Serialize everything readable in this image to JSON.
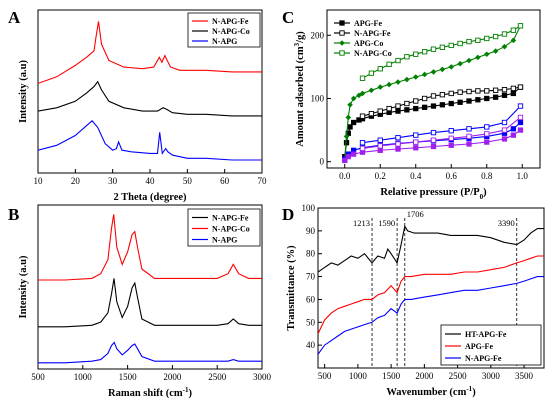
{
  "chart_data": [
    {
      "panel": "A",
      "type": "line",
      "xlabel": "2 Theta (degree)",
      "ylabel": "Intensity (a.u)",
      "xlim": [
        10,
        70
      ],
      "xticks": [
        "10",
        "20",
        "30",
        "40",
        "50",
        "60",
        "70"
      ],
      "yticks_shown": false,
      "legend": "top-right",
      "series": [
        {
          "name": "N-APG-Fe",
          "color": "#ff0000",
          "x": [
            10,
            15,
            20,
            23,
            25,
            25.5,
            26.2,
            27,
            29,
            33,
            38,
            41,
            42.5,
            43.2,
            44,
            44.6,
            45.5,
            48,
            55,
            62,
            70
          ],
          "y": [
            0.6,
            0.64,
            0.71,
            0.76,
            0.8,
            0.88,
            0.98,
            0.84,
            0.74,
            0.7,
            0.69,
            0.7,
            0.76,
            0.73,
            0.77,
            0.74,
            0.7,
            0.68,
            0.68,
            0.67,
            0.67
          ]
        },
        {
          "name": "N-APG-Co",
          "color": "#000000",
          "x": [
            10,
            15,
            20,
            23,
            25,
            26,
            27,
            29,
            33,
            38,
            42,
            43.5,
            44.5,
            46,
            50,
            55,
            62,
            70
          ],
          "y": [
            0.43,
            0.45,
            0.49,
            0.54,
            0.58,
            0.61,
            0.56,
            0.49,
            0.45,
            0.43,
            0.43,
            0.45,
            0.44,
            0.42,
            0.41,
            0.41,
            0.4,
            0.4
          ]
        },
        {
          "name": "N-APG",
          "color": "#0000ff",
          "x": [
            10,
            15,
            20,
            23,
            24.5,
            26,
            28,
            30,
            31,
            31.6,
            32.5,
            35,
            40,
            42,
            42.6,
            43.3,
            44.2,
            44.8,
            46,
            50,
            55,
            62,
            70
          ],
          "y": [
            0.19,
            0.22,
            0.28,
            0.34,
            0.37,
            0.33,
            0.23,
            0.19,
            0.2,
            0.24,
            0.19,
            0.18,
            0.17,
            0.17,
            0.3,
            0.17,
            0.2,
            0.18,
            0.16,
            0.14,
            0.14,
            0.13,
            0.13
          ]
        }
      ]
    },
    {
      "panel": "B",
      "type": "line",
      "xlabel": "Raman shift (cm-1)",
      "ylabel": "Intensity (a.u)",
      "xlim": [
        500,
        3000
      ],
      "xticks": [
        "500",
        "1000",
        "1500",
        "2000",
        "2500",
        "3000"
      ],
      "yticks_shown": false,
      "legend": "top-right",
      "series": [
        {
          "name": "N-APG-Fe",
          "color": "#000000",
          "x": [
            500,
            800,
            1100,
            1200,
            1280,
            1320,
            1348,
            1380,
            1440,
            1500,
            1550,
            1580,
            1610,
            1660,
            1800,
            2200,
            2500,
            2620,
            2680,
            2740,
            2850,
            3000
          ],
          "y": [
            0.27,
            0.27,
            0.28,
            0.3,
            0.36,
            0.48,
            0.58,
            0.43,
            0.33,
            0.4,
            0.52,
            0.55,
            0.46,
            0.32,
            0.28,
            0.28,
            0.28,
            0.29,
            0.32,
            0.29,
            0.28,
            0.28
          ]
        },
        {
          "name": "N-APG-Co",
          "color": "#ff0000",
          "x": [
            500,
            800,
            1100,
            1200,
            1280,
            1320,
            1345,
            1380,
            1440,
            1500,
            1550,
            1580,
            1610,
            1660,
            1800,
            2200,
            2500,
            2620,
            2680,
            2740,
            2850,
            3000
          ],
          "y": [
            0.57,
            0.57,
            0.58,
            0.61,
            0.7,
            0.9,
            0.99,
            0.78,
            0.67,
            0.75,
            0.86,
            0.88,
            0.78,
            0.64,
            0.58,
            0.58,
            0.58,
            0.61,
            0.67,
            0.61,
            0.58,
            0.58
          ]
        },
        {
          "name": "N-APG",
          "color": "#0000ff",
          "x": [
            500,
            800,
            1100,
            1200,
            1280,
            1320,
            1350,
            1380,
            1440,
            1500,
            1550,
            1580,
            1610,
            1660,
            1800,
            2200,
            2500,
            2620,
            2680,
            2740,
            2850,
            3000
          ],
          "y": [
            0.04,
            0.04,
            0.05,
            0.06,
            0.1,
            0.15,
            0.17,
            0.13,
            0.09,
            0.12,
            0.15,
            0.16,
            0.13,
            0.08,
            0.05,
            0.05,
            0.05,
            0.05,
            0.06,
            0.05,
            0.05,
            0.05
          ]
        }
      ]
    },
    {
      "panel": "C",
      "type": "line",
      "xlabel": "Relative pressure (P/P0)",
      "ylabel": "Amount adsorbed (cm3/g)",
      "xlim": [
        -0.1,
        1.1
      ],
      "ylim": [
        -10,
        240
      ],
      "xticks": [
        "0.0",
        "0.2",
        "0.4",
        "0.6",
        "0.8",
        "1.0"
      ],
      "yticks": [
        "0",
        "100",
        "200"
      ],
      "legend": "top-left",
      "series": [
        {
          "name": "APG-Fe",
          "color": "#000000",
          "marker": "filled-square",
          "x": [
            0.0,
            0.01,
            0.02,
            0.03,
            0.05,
            0.08,
            0.1,
            0.15,
            0.2,
            0.25,
            0.3,
            0.35,
            0.4,
            0.45,
            0.5,
            0.55,
            0.6,
            0.65,
            0.7,
            0.75,
            0.8,
            0.85,
            0.9,
            0.95,
            0.99
          ],
          "y": [
            8,
            30,
            45,
            55,
            62,
            66,
            68,
            72,
            75,
            78,
            80,
            82,
            84,
            86,
            88,
            90,
            92,
            94,
            96,
            98,
            100,
            102,
            105,
            108,
            118
          ]
        },
        {
          "name": "N-APG-Fe",
          "color": "#000000",
          "marker": "open-square",
          "x": [
            0.99,
            0.95,
            0.9,
            0.85,
            0.8,
            0.75,
            0.7,
            0.65,
            0.6,
            0.55,
            0.5,
            0.45,
            0.4,
            0.35,
            0.3,
            0.25,
            0.2,
            0.15,
            0.1
          ],
          "y": [
            118,
            116,
            114,
            113,
            112,
            112,
            111,
            110,
            108,
            106,
            104,
            100,
            96,
            92,
            88,
            84,
            80,
            76,
            72
          ]
        },
        {
          "name": "APG-Co",
          "color": "#008000",
          "marker": "filled-diamond",
          "x": [
            0.0,
            0.01,
            0.02,
            0.03,
            0.05,
            0.08,
            0.1,
            0.15,
            0.2,
            0.25,
            0.3,
            0.35,
            0.4,
            0.45,
            0.5,
            0.55,
            0.6,
            0.65,
            0.7,
            0.75,
            0.8,
            0.85,
            0.9,
            0.95,
            0.99
          ],
          "y": [
            5,
            40,
            70,
            90,
            100,
            105,
            108,
            113,
            118,
            122,
            126,
            130,
            134,
            138,
            142,
            146,
            150,
            155,
            160,
            165,
            170,
            175,
            182,
            192,
            215
          ]
        },
        {
          "name": "N-APG-Co",
          "color": "#008000",
          "marker": "open-square",
          "x": [
            0.99,
            0.95,
            0.9,
            0.85,
            0.8,
            0.75,
            0.7,
            0.65,
            0.6,
            0.55,
            0.5,
            0.45,
            0.4,
            0.35,
            0.3,
            0.25,
            0.2,
            0.15,
            0.1
          ],
          "y": [
            215,
            208,
            202,
            198,
            195,
            192,
            190,
            187,
            184,
            181,
            178,
            174,
            170,
            166,
            160,
            154,
            147,
            140,
            132
          ]
        },
        {
          "name": "",
          "color": "#0000ff",
          "marker": "filled-square",
          "x": [
            0.0,
            0.02,
            0.05,
            0.1,
            0.2,
            0.3,
            0.4,
            0.5,
            0.6,
            0.7,
            0.8,
            0.9,
            0.95,
            0.99
          ],
          "y": [
            4,
            12,
            18,
            22,
            26,
            29,
            31,
            33,
            35,
            37,
            40,
            45,
            52,
            62
          ]
        },
        {
          "name": "",
          "color": "#0000ff",
          "marker": "open-square",
          "x": [
            0.99,
            0.9,
            0.8,
            0.7,
            0.6,
            0.5,
            0.4,
            0.3,
            0.2,
            0.1
          ],
          "y": [
            88,
            62,
            55,
            52,
            49,
            46,
            42,
            38,
            34,
            30
          ]
        },
        {
          "name": "",
          "color": "#a020f0",
          "marker": "filled-square",
          "x": [
            0.0,
            0.02,
            0.05,
            0.1,
            0.2,
            0.3,
            0.4,
            0.5,
            0.6,
            0.7,
            0.8,
            0.9,
            0.95,
            0.99
          ],
          "y": [
            2,
            8,
            12,
            15,
            18,
            20,
            22,
            24,
            26,
            28,
            31,
            36,
            42,
            50
          ]
        },
        {
          "name": "",
          "color": "#a020f0",
          "marker": "open-square",
          "x": [
            0.99,
            0.9,
            0.8,
            0.7,
            0.6,
            0.5,
            0.4,
            0.3,
            0.2,
            0.1
          ],
          "y": [
            70,
            50,
            44,
            40,
            37,
            34,
            31,
            28,
            25,
            21
          ]
        }
      ]
    },
    {
      "panel": "D",
      "type": "line",
      "xlabel": "Wavenumber (cm-1)",
      "ylabel": "Transmittance (%)",
      "xlim": [
        400,
        3800
      ],
      "ylim": [
        30,
        100
      ],
      "xticks": [
        "500",
        "1000",
        "1500",
        "2000",
        "2500",
        "3000",
        "3500"
      ],
      "yticks": [
        "40",
        "50",
        "60",
        "70",
        "80",
        "90",
        "100"
      ],
      "legend": "bottom-right",
      "annotations": [
        {
          "text": "1213",
          "x": 1213
        },
        {
          "text": "1590",
          "x": 1590
        },
        {
          "text": "1706",
          "x": 1706
        },
        {
          "text": "3390",
          "x": 3390
        }
      ],
      "series": [
        {
          "name": "HT-APG-Fe",
          "color": "#000000",
          "x": [
            400,
            500,
            600,
            700,
            800,
            900,
            1000,
            1100,
            1213,
            1300,
            1400,
            1450,
            1500,
            1590,
            1650,
            1706,
            1750,
            1850,
            2000,
            2200,
            2400,
            2600,
            2800,
            3000,
            3200,
            3390,
            3500,
            3600,
            3700,
            3800
          ],
          "y": [
            72,
            74,
            76,
            75,
            77,
            79,
            78,
            80,
            76,
            79,
            78,
            82,
            80,
            76,
            84,
            92,
            90,
            89,
            89,
            89,
            88,
            88,
            88,
            87,
            85,
            84,
            86,
            89,
            91,
            91
          ]
        },
        {
          "name": "APG-Fe",
          "color": "#ff0000",
          "x": [
            400,
            500,
            600,
            700,
            800,
            900,
            1000,
            1100,
            1213,
            1300,
            1400,
            1500,
            1590,
            1650,
            1706,
            1800,
            2000,
            2200,
            2400,
            2600,
            2800,
            3000,
            3200,
            3390,
            3500,
            3600,
            3700,
            3800
          ],
          "y": [
            45,
            51,
            54,
            56,
            57,
            58,
            59,
            60,
            60,
            62,
            63,
            66,
            63,
            68,
            70,
            70,
            71,
            71,
            71,
            72,
            72,
            73,
            74,
            76,
            77,
            78,
            79,
            79
          ]
        },
        {
          "name": "N-APG-Fe",
          "color": "#0000ff",
          "x": [
            400,
            500,
            600,
            700,
            800,
            900,
            1000,
            1100,
            1213,
            1300,
            1400,
            1500,
            1590,
            1650,
            1706,
            1800,
            2000,
            2200,
            2400,
            2600,
            2800,
            3000,
            3200,
            3390,
            3500,
            3600,
            3700,
            3800
          ],
          "y": [
            36,
            40,
            42,
            44,
            46,
            47,
            48,
            49,
            50,
            52,
            53,
            56,
            54,
            58,
            60,
            60,
            61,
            62,
            63,
            64,
            64,
            65,
            66,
            67,
            68,
            69,
            70,
            70
          ]
        }
      ]
    }
  ]
}
